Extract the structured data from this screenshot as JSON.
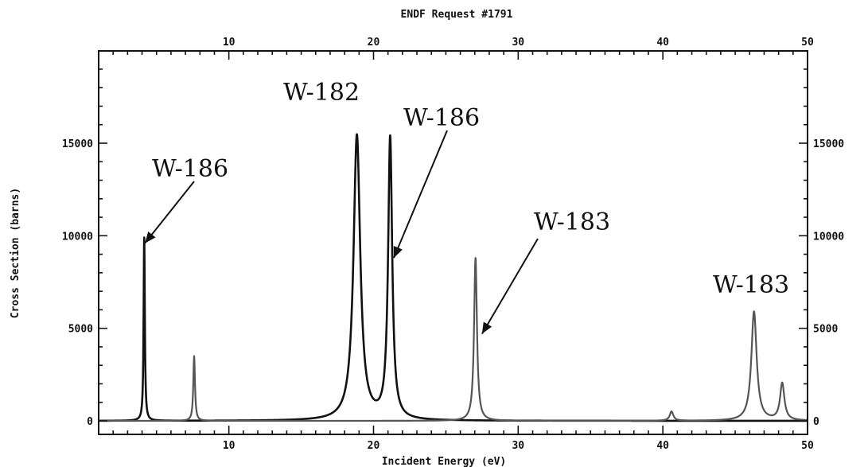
{
  "chart_data": {
    "type": "line",
    "title": "ENDF Request #1791",
    "xlabel": "Incident Energy (eV)",
    "ylabel": "Cross Section (barns)",
    "xlim": [
      1,
      50
    ],
    "ylim": [
      0,
      20000
    ],
    "grid": false,
    "legend": "none",
    "x_ticks": [
      10,
      20,
      30,
      40,
      50
    ],
    "x_tick_labels": [
      "10",
      "20",
      "30",
      "40",
      "50"
    ],
    "y_ticks": [
      0,
      5000,
      10000,
      15000
    ],
    "y_tick_labels": [
      "0",
      "5000",
      "10000",
      "15000"
    ],
    "series": [
      {
        "color": "#111111",
        "width": 2.6,
        "peaks": [
          {
            "x": 4.15,
            "y": 9900,
            "gamma": 0.05
          },
          {
            "x": 18.85,
            "y": 15400,
            "gamma": 0.28
          },
          {
            "x": 21.15,
            "y": 15200,
            "gamma": 0.17
          }
        ]
      },
      {
        "color": "#555555",
        "width": 2.2,
        "peaks": [
          {
            "x": 7.6,
            "y": 3500,
            "gamma": 0.07
          },
          {
            "x": 27.05,
            "y": 8800,
            "gamma": 0.12
          },
          {
            "x": 40.6,
            "y": 500,
            "gamma": 0.15
          },
          {
            "x": 46.3,
            "y": 5900,
            "gamma": 0.22
          },
          {
            "x": 48.25,
            "y": 2000,
            "gamma": 0.18
          }
        ]
      }
    ],
    "annotations": [
      {
        "text": "W-186",
        "arrow_to": {
          "x": 4.2,
          "y": 9600
        }
      },
      {
        "text": "W-182"
      },
      {
        "text": "W-186",
        "arrow_to": {
          "x": 21.4,
          "y": 8800
        }
      },
      {
        "text": "W-183",
        "arrow_to": {
          "x": 27.5,
          "y": 4700
        }
      },
      {
        "text": "W-183"
      }
    ]
  }
}
